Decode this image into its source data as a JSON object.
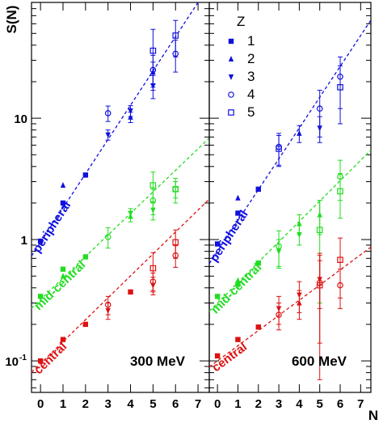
{
  "chart_data": {
    "type": "scatter",
    "ylabel": "S(N)",
    "xlabel": "N",
    "y_scale": "log",
    "ylim": [
      0.055,
      90
    ],
    "xlim": [
      -0.4,
      7.5
    ],
    "xticks": [
      0,
      1,
      2,
      3,
      4,
      5,
      6,
      7
    ],
    "yticks": [
      {
        "value": 0.1,
        "label": "10",
        "exp": "-1"
      },
      {
        "value": 1,
        "label": "1",
        "exp": ""
      },
      {
        "value": 10,
        "label": "10",
        "exp": ""
      }
    ],
    "legend": {
      "title": "Z",
      "placement": "top-right of right panel",
      "entries": [
        {
          "label": "1",
          "marker": "square"
        },
        {
          "label": "2",
          "marker": "triangle-up"
        },
        {
          "label": "3",
          "marker": "triangle-down"
        },
        {
          "label": "4",
          "marker": "circle-open"
        },
        {
          "label": "5",
          "marker": "square-open"
        }
      ]
    },
    "panels": [
      {
        "energy_label": "300 MeV",
        "groups": [
          {
            "name": "peripheral",
            "color": "#1010dd",
            "fit": [
              [
                0,
                0.95
              ],
              [
                7,
                90
              ]
            ],
            "points": [
              {
                "Z": 1,
                "N": 0,
                "y": 0.97
              },
              {
                "Z": 1,
                "N": 1,
                "y": 2.0
              },
              {
                "Z": 2,
                "N": 1,
                "y": 2.8
              },
              {
                "Z": 1,
                "N": 2,
                "y": 3.4
              },
              {
                "Z": 3,
                "N": 3,
                "y": 7.3,
                "err": 0.7
              },
              {
                "Z": 4,
                "N": 3,
                "y": 11.0,
                "err": 1.6
              },
              {
                "Z": 2,
                "N": 4,
                "y": 10.2,
                "err": 1.0
              },
              {
                "Z": 3,
                "N": 4,
                "y": 11.5,
                "err": 1.2
              },
              {
                "Z": 2,
                "N": 5,
                "y": 24.0,
                "err": 5.0
              },
              {
                "Z": 3,
                "N": 5,
                "y": 18.5,
                "err": 4.0
              },
              {
                "Z": 4,
                "N": 5,
                "y": 25.0,
                "err": 8.0
              },
              {
                "Z": 5,
                "N": 5,
                "y": 36.0,
                "err": 18.0
              },
              {
                "Z": 4,
                "N": 6,
                "y": 34.0,
                "err": 10.0
              },
              {
                "Z": 5,
                "N": 6,
                "y": 48.0,
                "err": 16.0
              }
            ]
          },
          {
            "name": "mid-central",
            "color": "#22dd22",
            "fit": [
              [
                0,
                0.32
              ],
              [
                7,
                5.6
              ]
            ],
            "points": [
              {
                "Z": 1,
                "N": 0,
                "y": 0.34
              },
              {
                "Z": 2,
                "N": 1,
                "y": 0.5
              },
              {
                "Z": 1,
                "N": 1,
                "y": 0.57
              },
              {
                "Z": 1,
                "N": 2,
                "y": 0.72
              },
              {
                "Z": 4,
                "N": 3,
                "y": 1.05,
                "err": 0.2
              },
              {
                "Z": 2,
                "N": 4,
                "y": 1.55,
                "err": 0.15
              },
              {
                "Z": 3,
                "N": 4,
                "y": 1.65,
                "err": 0.15
              },
              {
                "Z": 5,
                "N": 5,
                "y": 2.8,
                "err": 0.8
              },
              {
                "Z": 4,
                "N": 5,
                "y": 2.1,
                "err": 0.5
              },
              {
                "Z": 3,
                "N": 5,
                "y": 1.75,
                "err": 0.3
              },
              {
                "Z": 5,
                "N": 6,
                "y": 2.6,
                "err": 0.6
              },
              {
                "Z": 4,
                "N": 6,
                "y": 2.6,
                "err": 0.4
              }
            ]
          },
          {
            "name": "central",
            "color": "#dd1111",
            "fit": [
              [
                0,
                0.095
              ],
              [
                7,
                1.75
              ]
            ],
            "points": [
              {
                "Z": 1,
                "N": 0,
                "y": 0.1
              },
              {
                "Z": 1,
                "N": 1,
                "y": 0.15
              },
              {
                "Z": 1,
                "N": 2,
                "y": 0.2
              },
              {
                "Z": 4,
                "N": 3,
                "y": 0.29,
                "err": 0.05
              },
              {
                "Z": 3,
                "N": 3,
                "y": 0.26,
                "err": 0.04
              },
              {
                "Z": 1,
                "N": 4,
                "y": 0.37
              },
              {
                "Z": 5,
                "N": 5,
                "y": 0.58,
                "err": 0.2
              },
              {
                "Z": 4,
                "N": 5,
                "y": 0.45,
                "err": 0.08
              },
              {
                "Z": 3,
                "N": 5,
                "y": 0.42,
                "err": 0.07
              },
              {
                "Z": 5,
                "N": 6,
                "y": 0.95,
                "err": 0.25
              },
              {
                "Z": 4,
                "N": 6,
                "y": 0.74,
                "err": 0.15
              }
            ]
          }
        ]
      },
      {
        "energy_label": "600 MeV",
        "groups": [
          {
            "name": "peripheral",
            "color": "#1010dd",
            "fit": [
              [
                0,
                0.8
              ],
              [
                7,
                48
              ]
            ],
            "points": [
              {
                "Z": 1,
                "N": 0,
                "y": 0.92
              },
              {
                "Z": 2,
                "N": 1,
                "y": 2.2
              },
              {
                "Z": 1,
                "N": 1,
                "y": 1.65
              },
              {
                "Z": 1,
                "N": 2,
                "y": 2.6
              },
              {
                "Z": 4,
                "N": 3,
                "y": 5.8,
                "err": 1.7
              },
              {
                "Z": 5,
                "N": 3,
                "y": 5.6,
                "err": 1.6
              },
              {
                "Z": 2,
                "N": 4,
                "y": 7.5,
                "err": 1.2
              },
              {
                "Z": 4,
                "N": 5,
                "y": 12.0,
                "err": 5.0
              },
              {
                "Z": 3,
                "N": 5,
                "y": 8.3,
                "err": 2.0
              },
              {
                "Z": 4,
                "N": 6,
                "y": 22.0,
                "err": 10.0
              },
              {
                "Z": 5,
                "N": 6,
                "y": 18.0,
                "err": 9.0
              }
            ]
          },
          {
            "name": "mid-central",
            "color": "#22dd22",
            "fit": [
              [
                0,
                0.3
              ],
              [
                7,
                4.5
              ]
            ],
            "points": [
              {
                "Z": 1,
                "N": 0,
                "y": 0.34
              },
              {
                "Z": 1,
                "N": 1,
                "y": 0.43
              },
              {
                "Z": 2,
                "N": 1,
                "y": 0.46
              },
              {
                "Z": 1,
                "N": 2,
                "y": 0.64
              },
              {
                "Z": 4,
                "N": 3,
                "y": 0.88,
                "err": 0.3
              },
              {
                "Z": 3,
                "N": 3,
                "y": 0.8,
                "err": 0.2
              },
              {
                "Z": 2,
                "N": 4,
                "y": 1.35,
                "err": 0.25
              },
              {
                "Z": 3,
                "N": 4,
                "y": 1.1,
                "err": 0.2
              },
              {
                "Z": 2,
                "N": 5,
                "y": 1.6,
                "err": 0.5
              },
              {
                "Z": 5,
                "N": 5,
                "y": 1.2,
                "err": 0.9
              },
              {
                "Z": 4,
                "N": 6,
                "y": 3.3,
                "err": 1.2
              },
              {
                "Z": 5,
                "N": 6,
                "y": 2.5,
                "err": 1.0
              }
            ]
          },
          {
            "name": "central",
            "color": "#dd1111",
            "fit": [
              [
                0,
                0.1
              ],
              [
                7,
                0.75
              ]
            ],
            "points": [
              {
                "Z": 1,
                "N": 0,
                "y": 0.11
              },
              {
                "Z": 1,
                "N": 1,
                "y": 0.15
              },
              {
                "Z": 1,
                "N": 2,
                "y": 0.19
              },
              {
                "Z": 4,
                "N": 3,
                "y": 0.24,
                "err": 0.06
              },
              {
                "Z": 3,
                "N": 3,
                "y": 0.27,
                "err": 0.07
              },
              {
                "Z": 3,
                "N": 4,
                "y": 0.35,
                "err": 0.1
              },
              {
                "Z": 2,
                "N": 4,
                "y": 0.3,
                "err": 0.08
              },
              {
                "Z": 5,
                "N": 5,
                "y": 0.42,
                "err": 0.35
              },
              {
                "Z": 4,
                "N": 5,
                "y": 0.44,
                "err": 0.3
              },
              {
                "Z": 3,
                "N": 5,
                "y": 0.47,
                "err": 0.2
              },
              {
                "Z": 5,
                "N": 6,
                "y": 0.68,
                "err": 0.35
              },
              {
                "Z": 4,
                "N": 6,
                "y": 0.42,
                "err": 0.15
              }
            ]
          }
        ]
      }
    ]
  }
}
